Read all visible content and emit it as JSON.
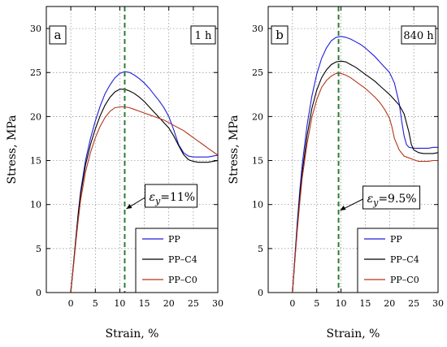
{
  "chart_data": [
    {
      "type": "line",
      "panel_label": "a",
      "time_label": "1 h",
      "xlabel": "Strain, %",
      "ylabel": "Stress, MPa",
      "xlim": [
        -5,
        30
      ],
      "ylim": [
        0,
        32.5
      ],
      "xticks": [
        0,
        5,
        10,
        15,
        20,
        25,
        30
      ],
      "yticks": [
        0,
        5,
        10,
        15,
        20,
        25,
        30
      ],
      "grid": true,
      "legend_position": "bottom-right",
      "yield_line": {
        "x": 11,
        "label_symbol": "ε",
        "label_sub": "y",
        "label_value": "=11%"
      },
      "series": [
        {
          "name": "PP",
          "color": "#1f1fdb",
          "x": [
            0,
            0.5,
            1,
            1.5,
            2,
            3,
            4,
            5,
            6,
            7,
            8,
            9,
            10,
            11,
            12,
            13,
            14,
            15,
            16,
            17,
            18,
            19,
            20,
            21,
            22,
            23,
            24,
            25,
            26,
            27,
            28,
            29,
            30
          ],
          "y": [
            0,
            3,
            6,
            9,
            11.5,
            15,
            17.5,
            19.5,
            21.2,
            22.6,
            23.6,
            24.4,
            24.9,
            25.1,
            25.0,
            24.7,
            24.3,
            23.8,
            23.2,
            22.5,
            21.8,
            21.0,
            20.0,
            18.5,
            16.8,
            15.9,
            15.5,
            15.4,
            15.4,
            15.4,
            15.4,
            15.5,
            15.6
          ]
        },
        {
          "name": "PP–C4",
          "color": "#000000",
          "x": [
            0,
            0.5,
            1,
            1.5,
            2,
            3,
            4,
            5,
            6,
            7,
            8,
            9,
            10,
            11,
            12,
            13,
            14,
            15,
            16,
            17,
            18,
            19,
            20,
            21,
            22,
            23,
            24,
            25,
            26,
            27,
            28,
            29,
            30
          ],
          "y": [
            0,
            3,
            6,
            8.8,
            11.2,
            14.5,
            16.8,
            18.6,
            20.1,
            21.3,
            22.2,
            22.8,
            23.1,
            23.1,
            22.9,
            22.6,
            22.2,
            21.7,
            21.1,
            20.5,
            19.9,
            19.3,
            18.7,
            17.8,
            16.7,
            15.7,
            15.1,
            14.9,
            14.8,
            14.8,
            14.8,
            14.9,
            15.0
          ]
        },
        {
          "name": "PP–C0",
          "color": "#b5361b",
          "x": [
            0,
            0.5,
            1,
            1.5,
            2,
            3,
            4,
            5,
            6,
            7,
            8,
            9,
            10,
            11,
            12,
            13,
            14,
            15,
            16,
            17,
            18,
            19,
            20,
            21,
            22,
            23,
            24,
            25,
            26,
            27,
            28,
            29,
            30
          ],
          "y": [
            0,
            2.8,
            5.6,
            8.2,
            10.5,
            13.7,
            15.9,
            17.6,
            18.9,
            19.9,
            20.6,
            21.0,
            21.1,
            21.1,
            21.0,
            20.8,
            20.6,
            20.4,
            20.2,
            20.0,
            19.8,
            19.6,
            19.3,
            19.0,
            18.7,
            18.4,
            18.0,
            17.6,
            17.2,
            16.8,
            16.4,
            16.0,
            15.6
          ]
        }
      ]
    },
    {
      "type": "line",
      "panel_label": "b",
      "time_label": "840 h",
      "xlabel": "Strain, %",
      "ylabel": "Stress, MPa",
      "xlim": [
        -5,
        30
      ],
      "ylim": [
        0,
        32.5
      ],
      "xticks": [
        0,
        5,
        10,
        15,
        20,
        25,
        30
      ],
      "yticks": [
        0,
        5,
        10,
        15,
        20,
        25,
        30
      ],
      "grid": true,
      "legend_position": "bottom-right",
      "yield_line": {
        "x": 9.5,
        "label_symbol": "ε",
        "label_sub": "y",
        "label_value": "=9.5%"
      },
      "series": [
        {
          "name": "PP",
          "color": "#1f1fdb",
          "x": [
            0,
            0.5,
            1,
            1.5,
            2,
            3,
            4,
            5,
            6,
            7,
            8,
            9,
            10,
            11,
            12,
            13,
            14,
            15,
            16,
            17,
            18,
            19,
            20,
            21,
            22,
            22.5,
            23,
            23.5,
            24,
            25,
            26,
            27,
            28,
            29,
            30
          ],
          "y": [
            0,
            4,
            8,
            11.5,
            14.5,
            19,
            22.3,
            24.8,
            26.6,
            27.8,
            28.6,
            29.0,
            29.1,
            29.0,
            28.8,
            28.5,
            28.2,
            27.8,
            27.3,
            26.8,
            26.2,
            25.6,
            25.0,
            23.8,
            21.5,
            19.5,
            17.8,
            16.8,
            16.5,
            16.4,
            16.4,
            16.4,
            16.4,
            16.5,
            16.5
          ]
        },
        {
          "name": "PP–C4",
          "color": "#000000",
          "x": [
            0,
            0.5,
            1,
            1.5,
            2,
            3,
            4,
            5,
            6,
            7,
            8,
            9,
            10,
            11,
            12,
            13,
            14,
            15,
            16,
            17,
            18,
            19,
            20,
            21,
            22,
            23,
            24,
            24.5,
            25,
            26,
            27,
            28,
            29,
            30
          ],
          "y": [
            0,
            3.8,
            7.5,
            10.8,
            13.6,
            17.8,
            20.9,
            23.0,
            24.4,
            25.3,
            25.9,
            26.2,
            26.3,
            26.2,
            25.9,
            25.6,
            25.2,
            24.8,
            24.4,
            24.0,
            23.5,
            23.0,
            22.5,
            21.9,
            21.3,
            20.3,
            18.2,
            16.8,
            16.2,
            15.9,
            15.8,
            15.8,
            15.8,
            15.9
          ]
        },
        {
          "name": "PP–C0",
          "color": "#b5361b",
          "x": [
            0,
            0.5,
            1,
            1.5,
            2,
            3,
            4,
            5,
            6,
            7,
            8,
            9,
            10,
            11,
            12,
            13,
            14,
            15,
            16,
            17,
            18,
            19,
            20,
            20.5,
            21,
            22,
            23,
            24,
            25,
            26,
            27,
            28,
            29,
            30
          ],
          "y": [
            0,
            3.6,
            7.1,
            10.2,
            13.0,
            16.9,
            19.9,
            21.9,
            23.3,
            24.1,
            24.6,
            24.9,
            24.9,
            24.7,
            24.4,
            24.0,
            23.6,
            23.2,
            22.7,
            22.2,
            21.6,
            20.8,
            19.8,
            18.8,
            17.5,
            16.2,
            15.5,
            15.3,
            15.1,
            14.9,
            14.9,
            14.9,
            15.0,
            15.0
          ]
        }
      ]
    }
  ]
}
